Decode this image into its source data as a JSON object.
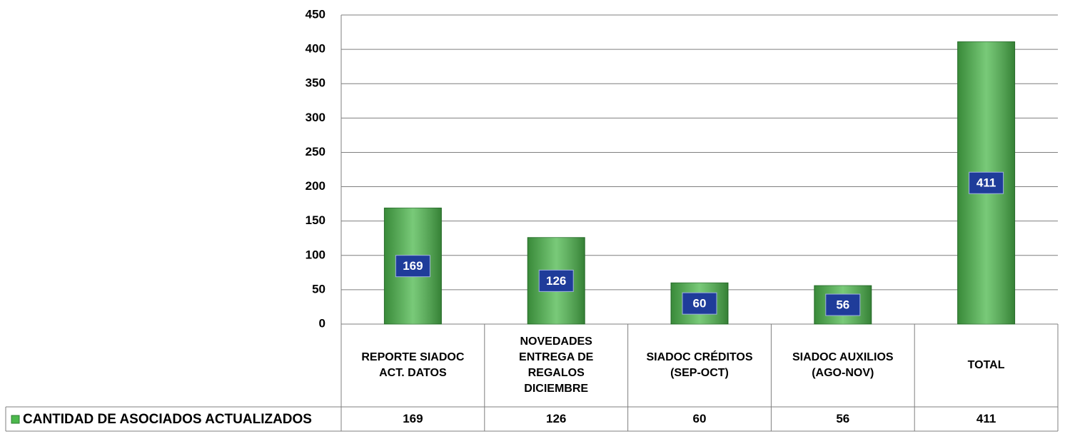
{
  "chart_data": {
    "type": "bar",
    "categories": [
      "REPORTE SIADOC ACT. DATOS",
      "NOVEDADES ENTREGA DE REGALOS DICIEMBRE",
      "SIADOC CRÉDITOS (SEP-OCT)",
      "SIADOC AUXILIOS (AGO-NOV)",
      "TOTAL"
    ],
    "series": [
      {
        "name": "CANTIDAD DE ASOCIADOS ACTUALIZADOS",
        "color": "#4cb84c",
        "values": [
          169,
          126,
          60,
          56,
          411
        ]
      }
    ],
    "ylim": [
      0,
      450
    ],
    "yticks": [
      0,
      50,
      100,
      150,
      200,
      250,
      300,
      350,
      400,
      450
    ],
    "grid": true,
    "label_color": "#1f3c9a"
  }
}
